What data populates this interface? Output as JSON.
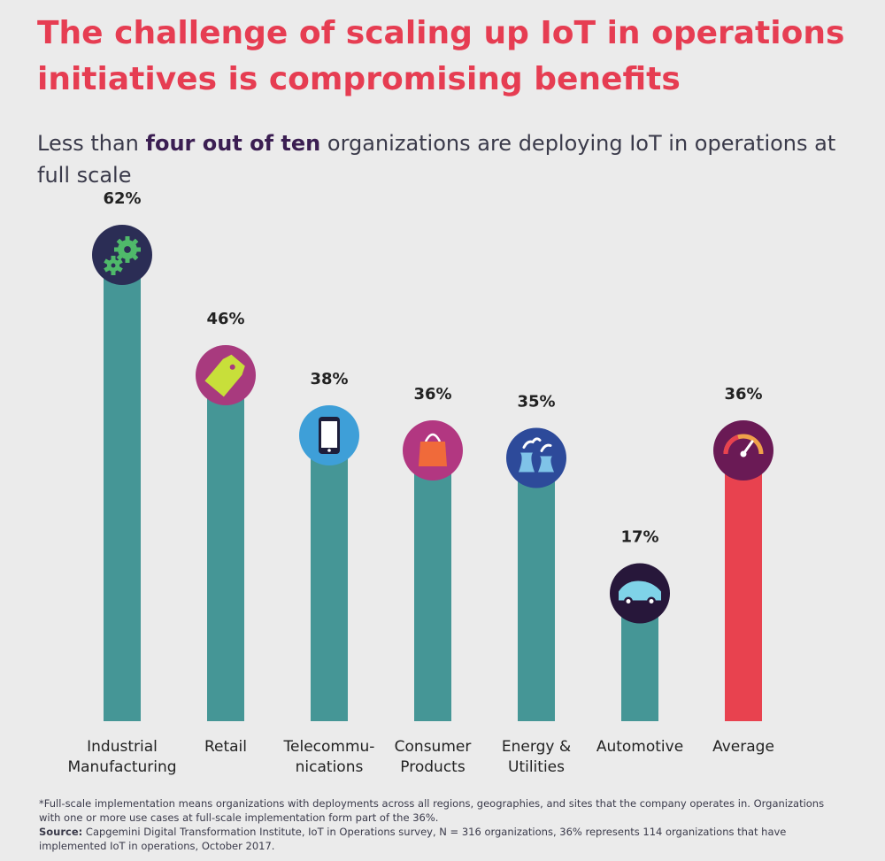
{
  "header": {
    "title": "The challenge of scaling up IoT in operations initiatives is compromising benefits",
    "subtitle_pre": "Less than ",
    "subtitle_bold": "four out of ten",
    "subtitle_post": " organizations are deploying IoT in operations at full scale"
  },
  "footnote": {
    "note": "*Full-scale implementation means organizations with deployments across all regions, geographies, and sites that the company operates in. Organizations with one or more use cases at full-scale implementation form part of the 36%.",
    "source_label": "Source:",
    "source_text": " Capgemini Digital Transformation Institute, IoT in Operations survey, N = 316 organizations, 36% represents 114 organizations that have implemented IoT in operations, October 2017."
  },
  "chart_data": {
    "type": "bar",
    "title": "",
    "xlabel": "",
    "ylabel": "",
    "ylim": [
      0,
      70
    ],
    "categories": [
      [
        "Industrial",
        "Manufacturing"
      ],
      [
        "Retail"
      ],
      [
        "Telecommu-",
        "nications"
      ],
      [
        "Consumer",
        "Products"
      ],
      [
        "Energy &",
        "Utilities"
      ],
      [
        "Automotive"
      ],
      [
        "Average"
      ]
    ],
    "values": [
      62,
      46,
      38,
      36,
      35,
      17,
      36
    ],
    "value_labels": [
      "62%",
      "46%",
      "38%",
      "36%",
      "35%",
      "17%",
      "36%"
    ],
    "bar_colors": [
      "#459696",
      "#459696",
      "#459696",
      "#459696",
      "#459696",
      "#459696",
      "#e8424f"
    ],
    "icons": [
      {
        "name": "gears-icon",
        "bg": "#2b2d55",
        "fg": "#4fb96a"
      },
      {
        "name": "price-tag-icon",
        "bg": "#a83a7e",
        "fg": "#c8df3a"
      },
      {
        "name": "smartphone-icon",
        "bg": "#3e9fd8",
        "fg": "#1e1e3a"
      },
      {
        "name": "shopping-bag-icon",
        "bg": "#b23781",
        "fg": "#f06a3a"
      },
      {
        "name": "power-plant-icon",
        "bg": "#2d4a9a",
        "fg": "#7fc3e8"
      },
      {
        "name": "car-icon",
        "bg": "#27173a",
        "fg": "#7fd3e8"
      },
      {
        "name": "gauge-icon",
        "bg": "#6a1a55",
        "fg": "#f0a24a"
      }
    ],
    "grid": false,
    "legend": "none"
  }
}
